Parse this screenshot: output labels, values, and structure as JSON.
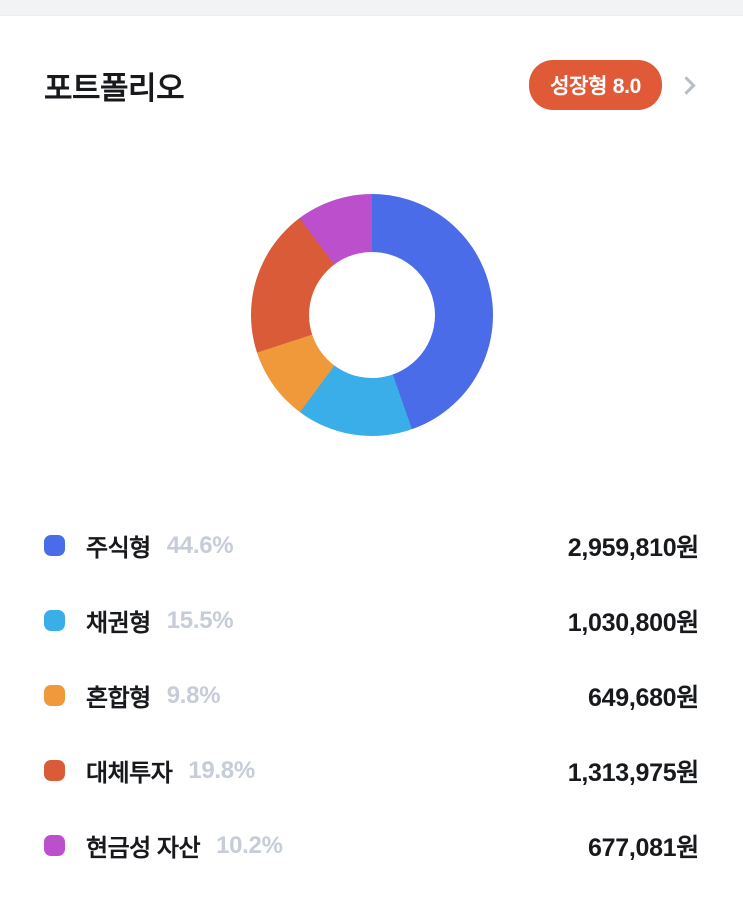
{
  "header": {
    "title": "포트폴리오",
    "badge_label": "성장형 8.0",
    "badge_color": "#e15a38"
  },
  "chart_data": {
    "type": "pie",
    "subtype": "donut",
    "title": "포트폴리오",
    "labels": [
      "주식형",
      "채권형",
      "혼합형",
      "대체투자",
      "현금성 자산"
    ],
    "values": [
      44.6,
      15.5,
      9.8,
      19.8,
      10.2
    ],
    "colors": [
      "#4a6ce9",
      "#3aaee8",
      "#f0993a",
      "#d95b38",
      "#bc50cc"
    ],
    "start_angle_deg": 0,
    "direction": "clockwise",
    "legend_position": "bottom"
  },
  "portfolio": {
    "items": [
      {
        "label": "주식형",
        "percent": "44.6%",
        "amount": "2,959,810원"
      },
      {
        "label": "채권형",
        "percent": "15.5%",
        "amount": "1,030,800원"
      },
      {
        "label": "혼합형",
        "percent": "9.8%",
        "amount": "649,680원"
      },
      {
        "label": "대체투자",
        "percent": "19.8%",
        "amount": "1,313,975원"
      },
      {
        "label": "현금성 자산",
        "percent": "10.2%",
        "amount": "677,081원"
      }
    ]
  }
}
